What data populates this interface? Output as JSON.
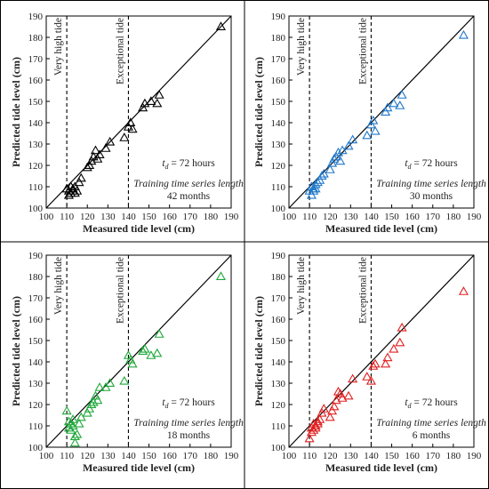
{
  "chart_data": [
    {
      "type": "scatter",
      "marker": "triangle-open",
      "color": "#000000",
      "xlabel": "Measured tide level (cm)",
      "ylabel": "Predicted tide level (cm)",
      "xlim": [
        100,
        190
      ],
      "ylim": [
        100,
        190
      ],
      "xticks": [
        "100",
        "110",
        "120",
        "130",
        "140",
        "150",
        "160",
        "170",
        "180",
        "190"
      ],
      "yticks": [
        "100",
        "110",
        "120",
        "130",
        "140",
        "150",
        "160",
        "170",
        "180",
        "190"
      ],
      "grid": false,
      "reference_line": "1:1",
      "vlines": [
        {
          "x": 110,
          "label": "Very  high tide"
        },
        {
          "x": 140,
          "label": "Exceptional tide"
        }
      ],
      "td_prefix": "t",
      "td_sub": "d",
      "td_value": " = 72 hours",
      "note": "Training time series length",
      "length": "42 months",
      "x": [
        110,
        111,
        112,
        113,
        114,
        111,
        112,
        113,
        114,
        115,
        116,
        117,
        120,
        121,
        122,
        123,
        124,
        125,
        126,
        129,
        131,
        138,
        140,
        141,
        142,
        147,
        148,
        151,
        154,
        155,
        185
      ],
      "y": [
        109,
        108,
        110,
        109,
        110,
        106,
        107,
        108,
        107,
        108,
        112,
        114,
        119,
        120,
        122,
        124,
        127,
        123,
        125,
        128,
        131,
        133,
        138,
        140,
        137,
        147,
        149,
        150,
        149,
        153,
        185
      ]
    },
    {
      "type": "scatter",
      "marker": "triangle-open",
      "color": "#1f77c9",
      "xlabel": "Measured tide level (cm)",
      "ylabel": "Predicted tide level (cm)",
      "xlim": [
        100,
        190
      ],
      "ylim": [
        100,
        190
      ],
      "xticks": [
        "100",
        "110",
        "120",
        "130",
        "140",
        "150",
        "160",
        "170",
        "180",
        "190"
      ],
      "yticks": [
        "100",
        "110",
        "120",
        "130",
        "140",
        "150",
        "160",
        "170",
        "180",
        "190"
      ],
      "grid": false,
      "reference_line": "1:1",
      "vlines": [
        {
          "x": 110,
          "label": "Very  high tide"
        },
        {
          "x": 140,
          "label": "Exceptional tide"
        }
      ],
      "td_prefix": "t",
      "td_sub": "d",
      "td_value": " = 72 hours",
      "note": "Training time series length",
      "length": "30 months",
      "x": [
        110,
        111,
        112,
        113,
        114,
        111,
        112,
        113,
        115,
        116,
        117,
        120,
        121,
        122,
        123,
        124,
        125,
        126,
        129,
        131,
        138,
        140,
        141,
        142,
        147,
        148,
        151,
        154,
        155,
        185
      ],
      "y": [
        108,
        110,
        109,
        111,
        112,
        106,
        108,
        109,
        113,
        115,
        116,
        118,
        121,
        123,
        124,
        126,
        122,
        127,
        129,
        132,
        134,
        139,
        141,
        136,
        145,
        147,
        149,
        148,
        153,
        181
      ]
    },
    {
      "type": "scatter",
      "marker": "triangle-open",
      "color": "#1fa83a",
      "xlabel": "Measured tide level (cm)",
      "ylabel": "Predicted tide level (cm)",
      "xlim": [
        100,
        190
      ],
      "ylim": [
        100,
        190
      ],
      "xticks": [
        "100",
        "110",
        "120",
        "130",
        "140",
        "150",
        "160",
        "170",
        "180",
        "190"
      ],
      "yticks": [
        "100",
        "110",
        "120",
        "130",
        "140",
        "150",
        "160",
        "170",
        "180",
        "190"
      ],
      "grid": false,
      "reference_line": "1:1",
      "vlines": [
        {
          "x": 110,
          "label": "Very  high tide"
        },
        {
          "x": 140,
          "label": "Exceptional tide"
        }
      ],
      "td_prefix": "t",
      "td_sub": "d",
      "td_value": " = 72 hours",
      "note": "Training time series length",
      "length": "18 months",
      "x": [
        110,
        111,
        112,
        113,
        114,
        111,
        112,
        113,
        114,
        115,
        116,
        117,
        120,
        121,
        122,
        123,
        124,
        125,
        126,
        129,
        131,
        138,
        140,
        141,
        142,
        147,
        148,
        151,
        154,
        155,
        185
      ],
      "y": [
        117,
        112,
        108,
        110,
        105,
        109,
        111,
        113,
        102,
        106,
        111,
        114,
        116,
        118,
        120,
        121,
        124,
        122,
        128,
        128,
        130,
        131,
        143,
        141,
        139,
        145,
        146,
        143,
        144,
        153,
        180
      ]
    },
    {
      "type": "scatter",
      "marker": "triangle-open",
      "color": "#e02020",
      "xlabel": "Measured tide level (cm)",
      "ylabel": "Predicted tide level (cm)",
      "xlim": [
        100,
        190
      ],
      "ylim": [
        100,
        190
      ],
      "xticks": [
        "100",
        "110",
        "120",
        "130",
        "140",
        "150",
        "160",
        "170",
        "180",
        "190"
      ],
      "yticks": [
        "100",
        "110",
        "120",
        "130",
        "140",
        "150",
        "160",
        "170",
        "180",
        "190"
      ],
      "grid": false,
      "reference_line": "1:1",
      "vlines": [
        {
          "x": 110,
          "label": "Very  high tide"
        },
        {
          "x": 140,
          "label": "Exceptional tide"
        }
      ],
      "td_prefix": "t",
      "td_sub": "d",
      "td_value": " = 72 hours",
      "note": "Training time series length",
      "length": "6 months",
      "x": [
        110,
        111,
        112,
        113,
        114,
        111,
        112,
        113,
        114,
        115,
        116,
        117,
        120,
        121,
        122,
        123,
        124,
        125,
        126,
        129,
        131,
        138,
        140,
        141,
        142,
        147,
        148,
        151,
        154,
        155,
        185
      ],
      "y": [
        104,
        109,
        111,
        110,
        112,
        107,
        108,
        109,
        111,
        113,
        116,
        118,
        114,
        117,
        119,
        122,
        126,
        125,
        123,
        124,
        132,
        133,
        131,
        138,
        139,
        139,
        142,
        146,
        149,
        156,
        173
      ]
    }
  ]
}
